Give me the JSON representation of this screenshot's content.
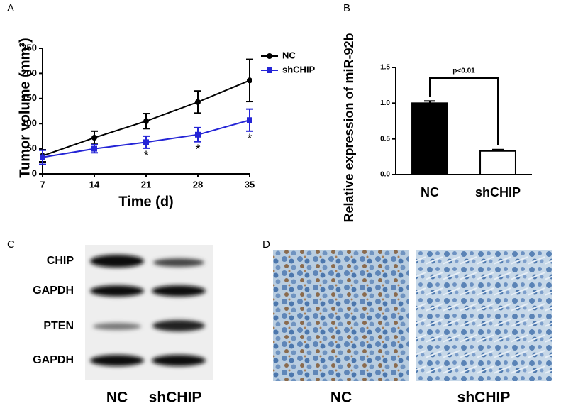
{
  "chart_data": [
    {
      "type": "line",
      "panel_label": "A",
      "x_label": "Time (d)",
      "y_label": "Tumor volume (mm³)",
      "xlim": [
        7,
        35
      ],
      "xticks": [
        7,
        14,
        21,
        28,
        35
      ],
      "ylim": [
        0,
        250
      ],
      "yticks": [
        0,
        50,
        100,
        150,
        200,
        250
      ],
      "legend": "right",
      "x": [
        7,
        14,
        21,
        28,
        35
      ],
      "series": [
        {
          "name": "NC",
          "color": "#000000",
          "marker": "circle",
          "values": [
            36,
            72,
            105,
            143,
            186
          ],
          "errors": [
            12,
            13,
            15,
            22,
            42
          ]
        },
        {
          "name": "shCHIP",
          "color": "#2424d6",
          "marker": "square",
          "values": [
            33,
            50,
            63,
            78,
            107
          ],
          "errors": [
            14,
            8,
            12,
            14,
            22
          ]
        }
      ],
      "annotations": [
        {
          "text": "*",
          "x": 21
        },
        {
          "text": "*",
          "x": 28
        },
        {
          "text": "*",
          "x": 35
        }
      ]
    },
    {
      "type": "bar",
      "panel_label": "B",
      "y_label": "Relative expression of miR-92b",
      "ylim": [
        0,
        1.5
      ],
      "yticks": [
        {
          "value": 0,
          "label": "0.0"
        },
        {
          "value": 0.5,
          "label": "0.5"
        },
        {
          "value": 1,
          "label": "1.0"
        },
        {
          "value": 1.5,
          "label": "1.5"
        }
      ],
      "categories": [
        "NC",
        "shCHIP"
      ],
      "values": [
        1.0,
        0.33
      ],
      "errors": [
        0.03,
        0.02
      ],
      "colors": [
        "#000000",
        "#ffffff"
      ],
      "annotation": "p<0.01"
    }
  ],
  "panel_c": {
    "label": "C",
    "rows": [
      "CHIP",
      "GAPDH",
      "PTEN",
      "GAPDH"
    ],
    "columns": [
      "NC",
      "shCHIP"
    ]
  },
  "panel_d": {
    "label": "D",
    "columns": [
      "NC",
      "shCHIP"
    ]
  }
}
